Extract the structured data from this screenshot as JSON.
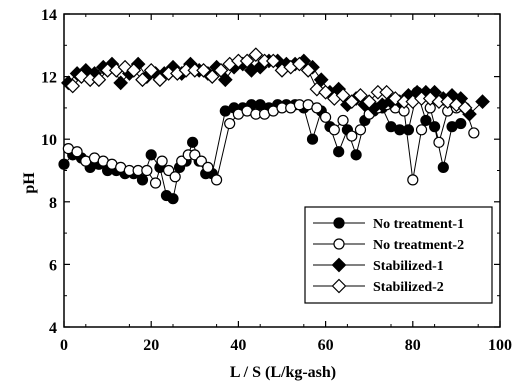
{
  "chart_data": {
    "type": "scatter",
    "title": "",
    "xlabel": "L / S (L/kg-ash)",
    "ylabel": "pH",
    "xlim": [
      0,
      100
    ],
    "ylim": [
      4,
      14
    ],
    "xticks": [
      0,
      20,
      40,
      60,
      80,
      100
    ],
    "yticks": [
      4,
      6,
      8,
      10,
      12,
      14
    ],
    "x_tick_labels": [
      "0",
      "20",
      "40",
      "60",
      "80",
      "100"
    ],
    "y_tick_labels": [
      "4",
      "6",
      "8",
      "10",
      "12",
      "14"
    ],
    "grid": false,
    "legend_position": "bottom-right",
    "series": [
      {
        "name": "No treatment-1",
        "marker": "circle",
        "filled": true,
        "color": "#000000",
        "x": [
          0,
          2,
          4,
          6,
          8,
          10,
          12,
          14,
          16,
          18,
          20,
          22,
          23.5,
          25,
          26.5,
          28,
          29.5,
          31,
          32.5,
          34,
          37,
          39,
          41,
          43,
          45,
          47,
          49,
          51,
          53,
          55,
          57,
          59,
          61,
          63,
          65,
          67,
          69,
          71,
          73,
          75,
          77,
          79,
          81,
          83,
          85,
          87,
          89,
          91
        ],
        "y": [
          9.2,
          9.5,
          9.4,
          9.1,
          9.2,
          9.0,
          9.0,
          8.9,
          8.9,
          8.7,
          9.5,
          9.1,
          8.2,
          8.1,
          9.1,
          9.3,
          9.9,
          9.3,
          8.9,
          8.9,
          10.9,
          11.0,
          11.0,
          11.1,
          11.1,
          11.0,
          11.1,
          11.1,
          11.1,
          11.0,
          10.0,
          10.9,
          10.4,
          9.6,
          10.3,
          9.5,
          10.6,
          10.9,
          11.0,
          10.4,
          10.3,
          10.3,
          11.5,
          10.6,
          10.4,
          9.1,
          10.4,
          10.5
        ]
      },
      {
        "name": "No treatment-2",
        "marker": "circle",
        "filled": false,
        "color": "#000000",
        "x": [
          1,
          3,
          5,
          7,
          9,
          11,
          13,
          15,
          17,
          19,
          21,
          22.5,
          24,
          25.5,
          27,
          28.5,
          30,
          31.5,
          33,
          35,
          38,
          40,
          42,
          44,
          46,
          48,
          50,
          52,
          54,
          56,
          58,
          60,
          62,
          64,
          66,
          68,
          70,
          72,
          74,
          76,
          78,
          80,
          82,
          84,
          86,
          88,
          90,
          92,
          94
        ],
        "y": [
          9.7,
          9.6,
          9.3,
          9.4,
          9.3,
          9.2,
          9.1,
          9.0,
          9.0,
          9.0,
          8.6,
          9.3,
          9.0,
          8.8,
          9.3,
          9.5,
          9.5,
          9.3,
          9.1,
          8.7,
          10.5,
          10.8,
          10.9,
          10.8,
          10.8,
          10.9,
          11.0,
          11.0,
          11.1,
          11.1,
          11.0,
          10.7,
          10.3,
          10.6,
          10.1,
          10.3,
          10.8,
          11.0,
          11.1,
          11.0,
          10.9,
          8.7,
          10.3,
          11.0,
          9.9,
          10.9,
          11.0,
          11.0,
          10.2
        ]
      },
      {
        "name": "Stabilized-1",
        "marker": "diamond",
        "filled": true,
        "color": "#000000",
        "x": [
          1,
          3,
          5,
          7,
          9,
          11,
          13,
          15,
          17,
          19,
          21,
          23,
          25,
          27,
          29,
          31,
          33,
          35,
          37,
          39,
          41,
          43,
          45,
          47,
          49,
          51,
          53,
          55,
          57,
          59,
          61,
          63,
          65,
          67,
          69,
          71,
          73,
          75,
          77,
          79,
          81,
          83,
          85,
          87,
          89,
          91,
          93,
          96
        ],
        "y": [
          11.8,
          12.1,
          12.2,
          12.1,
          12.3,
          12.4,
          11.8,
          12.1,
          12.4,
          12.0,
          12.1,
          12.1,
          12.3,
          12.1,
          12.4,
          12.2,
          12.1,
          12.3,
          11.9,
          12.3,
          12.4,
          12.2,
          12.3,
          12.5,
          12.5,
          12.4,
          12.4,
          12.5,
          12.3,
          11.9,
          11.5,
          11.6,
          11.1,
          11.3,
          11.1,
          11.0,
          11.1,
          11.2,
          11.2,
          11.4,
          11.5,
          11.5,
          11.5,
          11.3,
          11.4,
          11.3,
          10.8,
          11.2
        ]
      },
      {
        "name": "Stabilized-2",
        "marker": "diamond",
        "filled": false,
        "color": "#000000",
        "x": [
          2,
          4,
          6,
          8,
          10,
          12,
          14,
          16,
          18,
          20,
          22,
          24,
          26,
          28,
          30,
          32,
          34,
          36,
          38,
          40,
          42,
          44,
          46,
          48,
          50,
          52,
          54,
          56,
          58,
          60,
          62,
          64,
          66,
          68,
          70,
          72,
          74,
          76,
          78,
          80,
          82,
          84,
          86,
          88,
          90,
          92
        ],
        "y": [
          11.7,
          12.0,
          11.9,
          11.9,
          12.2,
          12.2,
          12.3,
          12.2,
          11.9,
          12.2,
          11.9,
          12.1,
          12.1,
          12.2,
          12.2,
          12.2,
          12.0,
          12.2,
          12.4,
          12.5,
          12.5,
          12.7,
          12.5,
          12.5,
          12.2,
          12.3,
          12.4,
          12.2,
          11.6,
          11.5,
          11.3,
          11.4,
          11.2,
          11.4,
          11.2,
          11.5,
          11.5,
          11.3,
          11.2,
          11.2,
          11.3,
          11.3,
          11.2,
          11.2,
          11.1,
          11.0
        ]
      }
    ]
  }
}
